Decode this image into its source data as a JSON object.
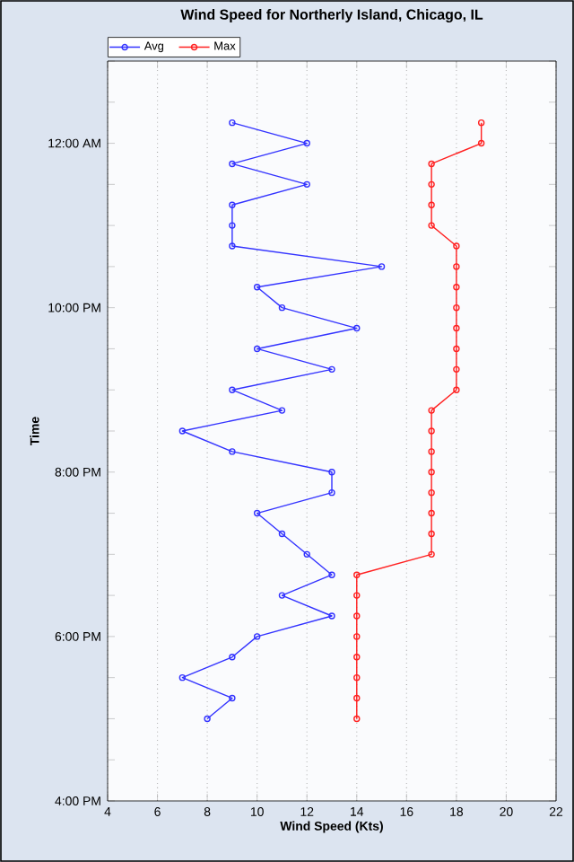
{
  "chart_data": {
    "type": "line",
    "title": "Wind Speed for Northerly Island, Chicago, IL",
    "xlabel": "Wind Speed (Kts)",
    "ylabel": "Time",
    "orientation": "horizontal",
    "x": [
      17.0,
      17.25,
      17.5,
      17.75,
      18.0,
      18.25,
      18.5,
      18.75,
      19.0,
      19.25,
      19.5,
      19.75,
      20.0,
      20.25,
      20.5,
      20.75,
      21.0,
      21.25,
      21.5,
      21.75,
      22.0,
      22.25,
      22.5,
      22.75,
      23.0,
      23.25,
      23.5,
      23.75,
      24.0,
      24.25
    ],
    "series": [
      {
        "name": "Avg",
        "color": "#3333ff",
        "values": [
          8,
          9,
          7,
          9,
          10,
          13,
          11,
          13,
          12,
          11,
          10,
          13,
          13,
          9,
          7,
          11,
          9,
          13,
          10,
          14,
          11,
          10,
          15,
          9,
          9,
          9,
          12,
          9,
          12,
          9
        ]
      },
      {
        "name": "Max",
        "color": "#ff2020",
        "values": [
          14,
          14,
          14,
          14,
          14,
          14,
          14,
          14,
          17,
          17,
          17,
          17,
          17,
          17,
          17,
          17,
          18,
          18,
          18,
          18,
          18,
          18,
          18,
          18,
          17,
          17,
          17,
          17,
          19,
          19
        ]
      }
    ],
    "xlim": [
      4,
      22
    ],
    "xticks": [
      4,
      6,
      8,
      10,
      12,
      14,
      16,
      18,
      20,
      22
    ],
    "ylim": [
      16,
      25
    ],
    "yticks": [
      {
        "value": 16,
        "label": "4:00 PM"
      },
      {
        "value": 16.5,
        "label": null
      },
      {
        "value": 17,
        "label": null
      },
      {
        "value": 17.5,
        "label": null
      },
      {
        "value": 18,
        "label": "6:00 PM"
      },
      {
        "value": 18.5,
        "label": null
      },
      {
        "value": 19,
        "label": null
      },
      {
        "value": 19.5,
        "label": null
      },
      {
        "value": 20,
        "label": "8:00 PM"
      },
      {
        "value": 20.5,
        "label": null
      },
      {
        "value": 21,
        "label": null
      },
      {
        "value": 21.5,
        "label": null
      },
      {
        "value": 22,
        "label": "10:00 PM"
      },
      {
        "value": 22.5,
        "label": null
      },
      {
        "value": 23,
        "label": null
      },
      {
        "value": 23.5,
        "label": null
      },
      {
        "value": 24,
        "label": "12:00 AM"
      },
      {
        "value": 24.5,
        "label": null
      },
      {
        "value": 25,
        "label": null
      }
    ],
    "grid": "x",
    "legend": "top left",
    "marker": "circle",
    "line_style": "solid"
  }
}
